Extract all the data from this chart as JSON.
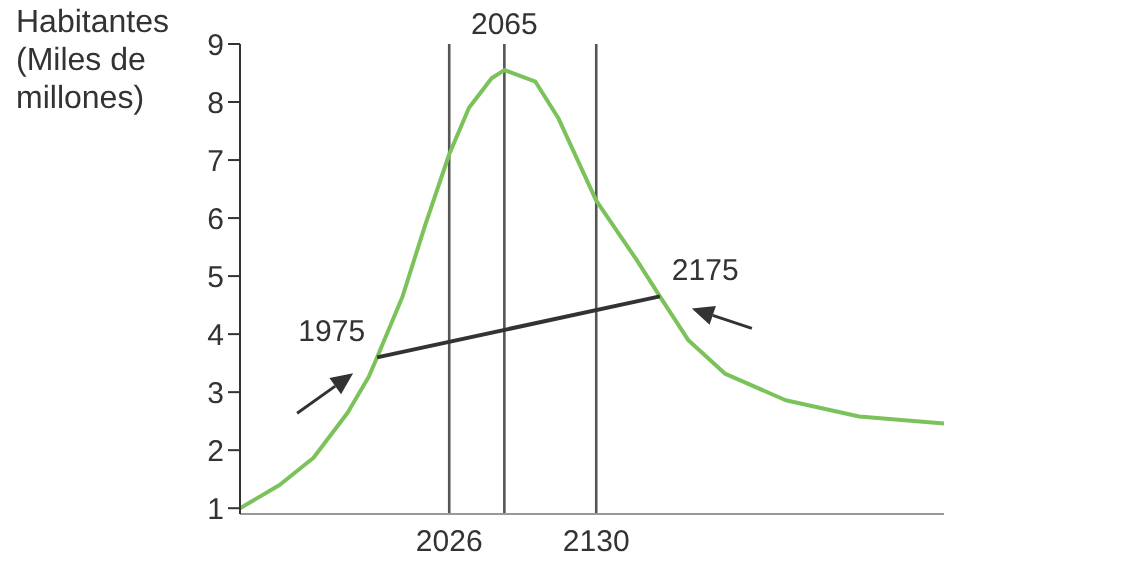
{
  "chart_data": {
    "type": "line",
    "ylabel": "Habitantes (Miles de millones)",
    "ylim": [
      0.9,
      9
    ],
    "yticks": [
      1,
      2,
      3,
      4,
      5,
      6,
      7,
      8,
      9
    ],
    "xlim": [
      1878,
      2376
    ],
    "xticks": [
      2026,
      2130
    ],
    "series": [
      {
        "color": "#7cc25a",
        "x": [
          1878,
          1906,
          1930,
          1954,
          1969,
          1975,
          1993,
          2009,
          2026,
          2040,
          2056,
          2065,
          2087,
          2103,
          2130,
          2158,
          2175,
          2195,
          2221,
          2264,
          2316,
          2376
        ],
        "values": [
          1.0,
          1.4,
          1.87,
          2.64,
          3.26,
          3.6,
          4.65,
          5.88,
          7.1,
          7.9,
          8.41,
          8.55,
          8.35,
          7.73,
          6.3,
          5.3,
          4.65,
          3.9,
          3.32,
          2.86,
          2.58,
          2.46
        ]
      },
      {
        "color": "#333333",
        "x": [
          1975,
          2175
        ],
        "values": [
          3.6,
          4.65
        ]
      }
    ],
    "ref_lines": [
      {
        "axis": "x",
        "value": 2026,
        "color": "#555555"
      },
      {
        "axis": "x",
        "value": 2065,
        "label": "2065",
        "color": "#555555"
      },
      {
        "axis": "x",
        "value": 2130,
        "color": "#555555"
      }
    ],
    "annotations": [
      {
        "text": "1975",
        "x": 1975,
        "y": 3.6
      },
      {
        "text": "2175",
        "x": 2175,
        "y": 4.65
      }
    ]
  }
}
